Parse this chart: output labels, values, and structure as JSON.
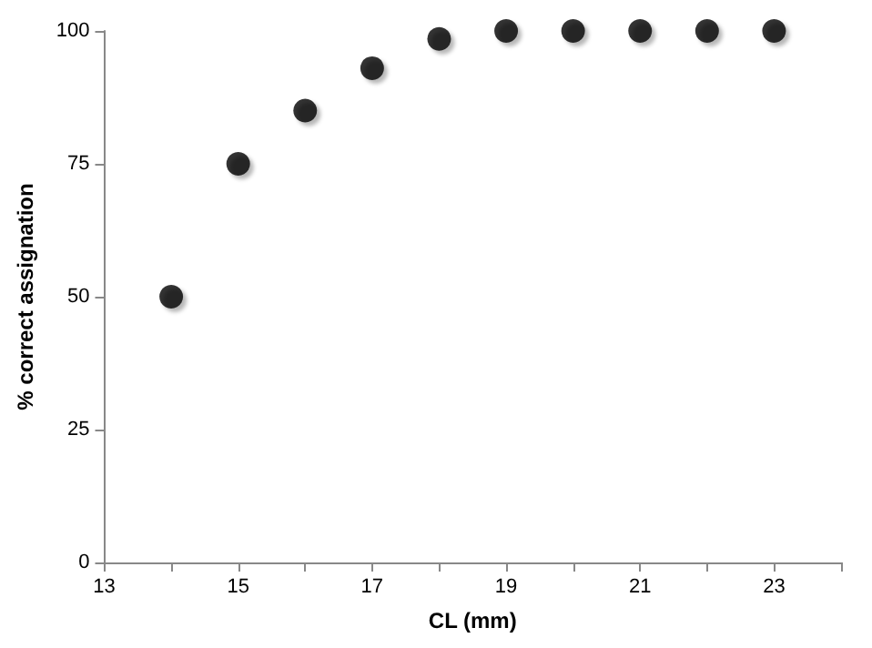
{
  "chart_data": {
    "type": "scatter",
    "xlabel": "CL (mm)",
    "ylabel": "% correct assignation",
    "x": [
      14,
      15,
      16,
      17,
      18,
      19,
      20,
      21,
      22,
      23
    ],
    "values": [
      50,
      75,
      85,
      93,
      98.5,
      100,
      100,
      100,
      100,
      100
    ],
    "color": "#000000",
    "marker": "circle",
    "grid": false,
    "xlim": [
      13,
      24
    ],
    "xticks": [
      13,
      {
        "value": 14,
        "label": null
      },
      15,
      {
        "value": 16,
        "label": null
      },
      17,
      {
        "value": 18,
        "label": null
      },
      19,
      {
        "value": 20,
        "label": null
      },
      21,
      {
        "value": 22,
        "label": null
      },
      23,
      {
        "value": 24,
        "label": null
      }
    ],
    "ylim": [
      0,
      100
    ],
    "yticks": [
      0,
      25,
      50,
      75,
      100
    ]
  }
}
